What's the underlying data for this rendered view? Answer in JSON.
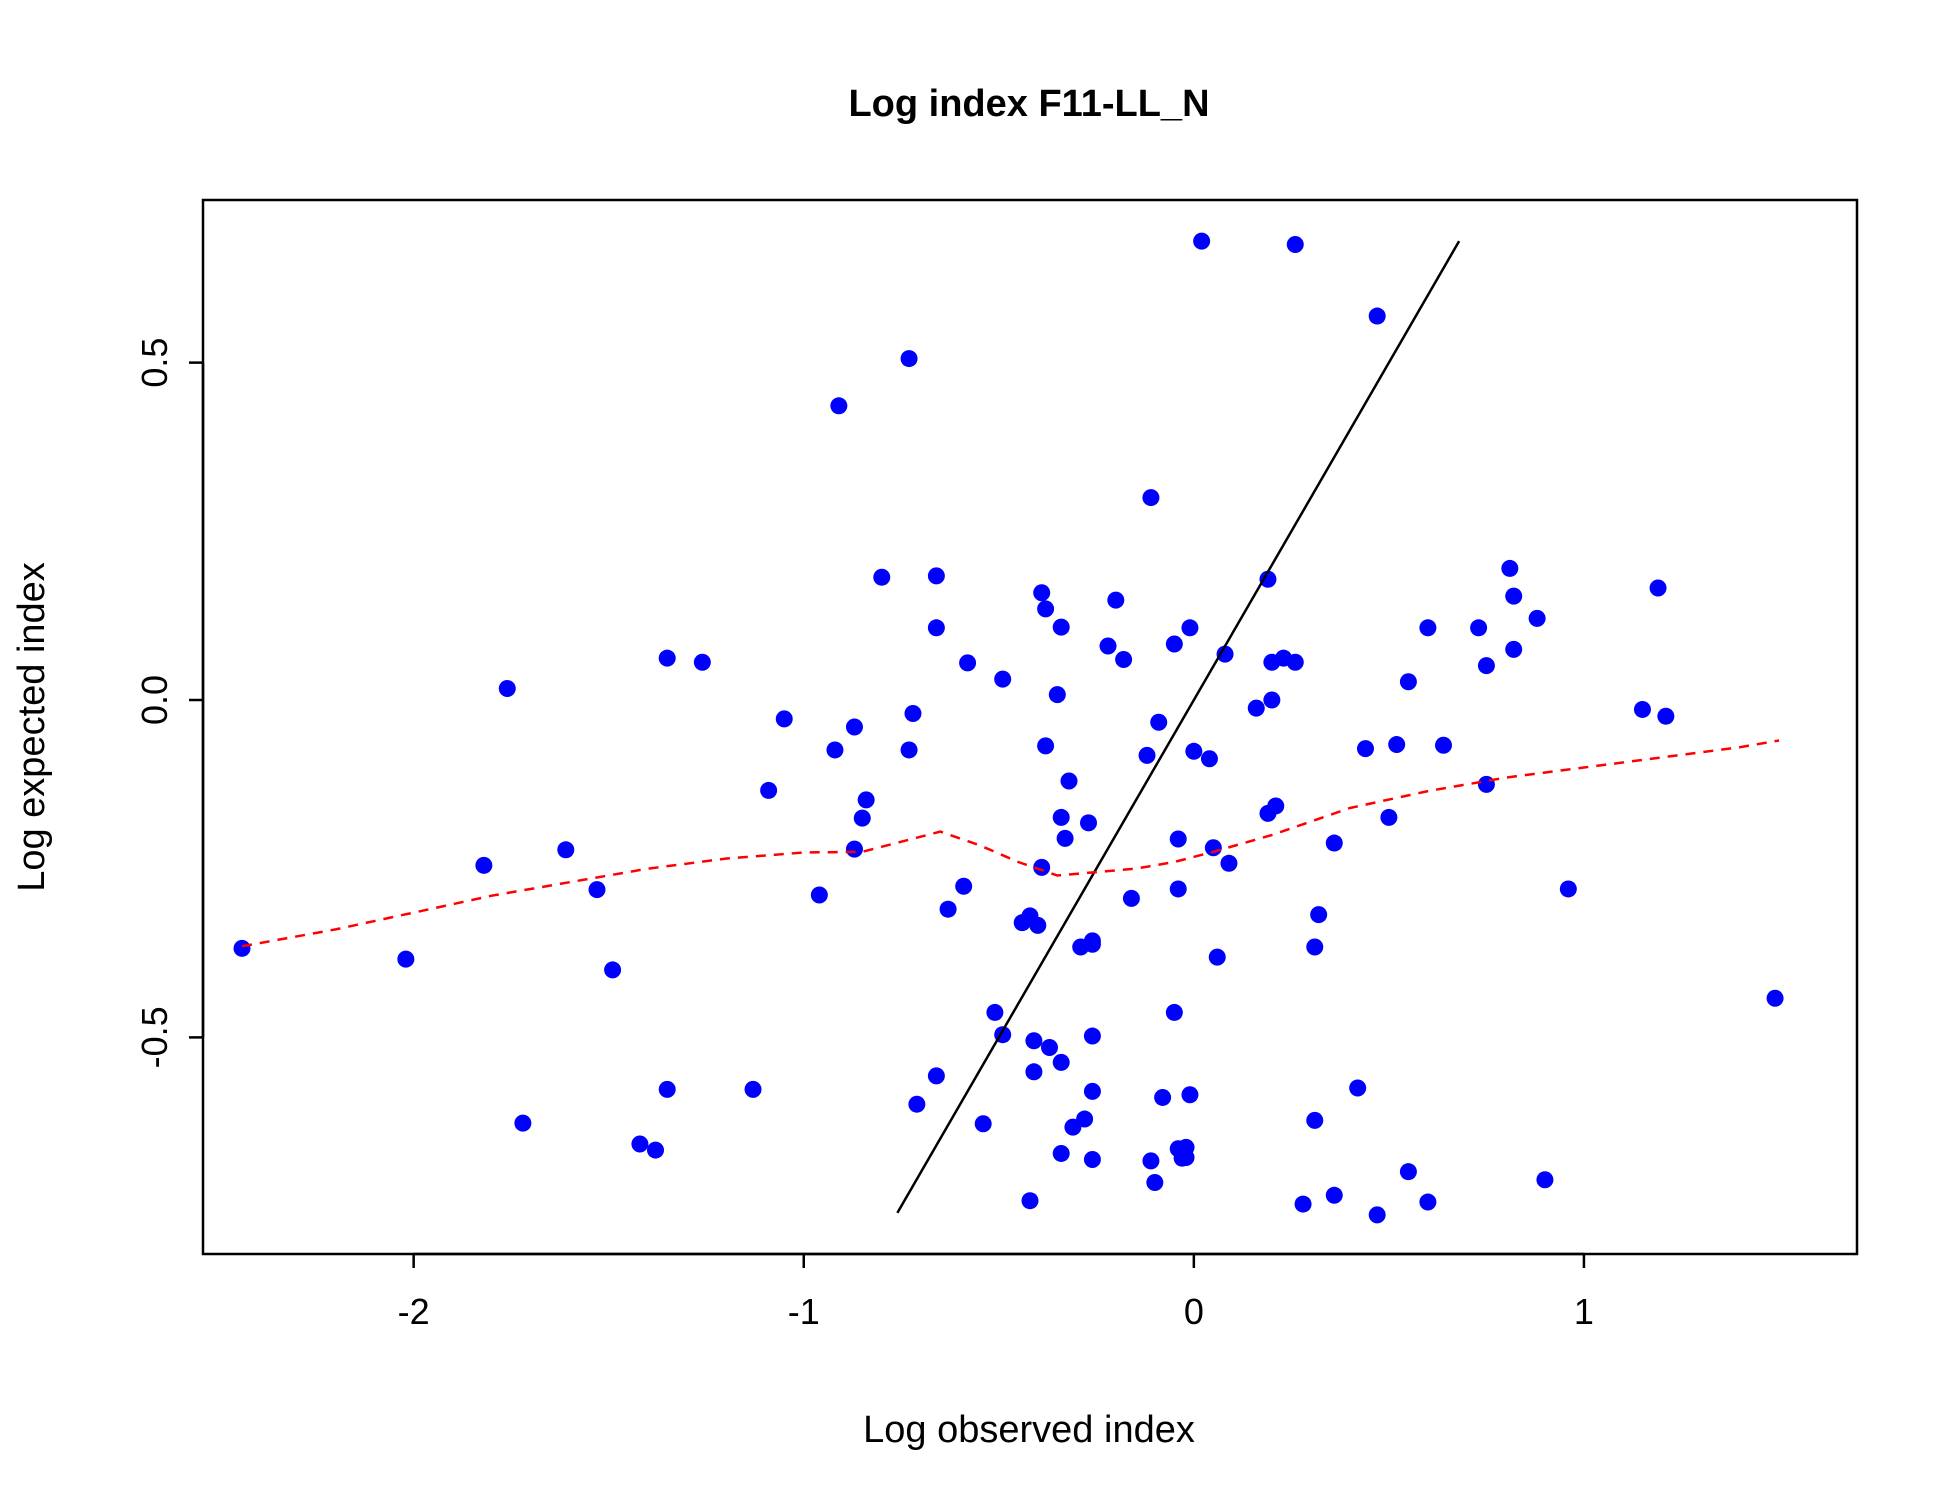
{
  "chart_data": {
    "type": "scatter",
    "title": "Log index F11-LL_N",
    "xlabel": "Log observed index",
    "ylabel": "Log expected index",
    "xlim": [
      -2.54,
      1.7
    ],
    "ylim": [
      -0.821,
      0.741
    ],
    "xticks": [
      {
        "value": -2,
        "label": "-2"
      },
      {
        "value": -1,
        "label": "-1"
      },
      {
        "value": 0,
        "label": "0"
      },
      {
        "value": 1,
        "label": "1"
      }
    ],
    "yticks": [
      {
        "value": -0.5,
        "label": "-0.5"
      },
      {
        "value": 0.0,
        "label": "0.0"
      },
      {
        "value": 0.5,
        "label": "0.5"
      }
    ],
    "points_color": "#0000ff",
    "identity_line": {
      "x": [
        -0.76,
        0.68
      ],
      "y": [
        -0.76,
        0.68
      ],
      "color": "#000000"
    },
    "smoother": {
      "color": "#ff0000",
      "style": "dashed",
      "x": [
        -2.44,
        -2.2,
        -2.0,
        -1.8,
        -1.6,
        -1.4,
        -1.2,
        -1.0,
        -0.85,
        -0.75,
        -0.65,
        -0.55,
        -0.45,
        -0.35,
        -0.25,
        -0.15,
        -0.05,
        0.05,
        0.2,
        0.4,
        0.6,
        0.8,
        1.0,
        1.2,
        1.4,
        1.5
      ],
      "y": [
        -0.365,
        -0.34,
        -0.315,
        -0.29,
        -0.27,
        -0.25,
        -0.235,
        -0.226,
        -0.225,
        -0.21,
        -0.195,
        -0.215,
        -0.24,
        -0.26,
        -0.255,
        -0.25,
        -0.24,
        -0.225,
        -0.2,
        -0.16,
        -0.135,
        -0.115,
        -0.1,
        -0.085,
        -0.07,
        -0.06
      ]
    },
    "points": [
      [
        -2.44,
        -0.368
      ],
      [
        -2.02,
        -0.384
      ],
      [
        -1.82,
        -0.245
      ],
      [
        -1.76,
        0.017
      ],
      [
        -1.72,
        -0.627
      ],
      [
        -1.61,
        -0.222
      ],
      [
        -1.53,
        -0.281
      ],
      [
        -1.49,
        -0.4
      ],
      [
        -1.42,
        -0.658
      ],
      [
        -1.38,
        -0.667
      ],
      [
        -1.35,
        0.062
      ],
      [
        -1.35,
        -0.577
      ],
      [
        -1.26,
        0.056
      ],
      [
        -1.13,
        -0.577
      ],
      [
        -1.09,
        -0.134
      ],
      [
        -1.05,
        -0.028
      ],
      [
        -0.96,
        -0.289
      ],
      [
        -0.92,
        -0.074
      ],
      [
        -0.91,
        0.436
      ],
      [
        -0.87,
        -0.04
      ],
      [
        -0.87,
        -0.221
      ],
      [
        -0.85,
        -0.175
      ],
      [
        -0.84,
        -0.148
      ],
      [
        -0.8,
        0.182
      ],
      [
        -0.73,
        0.506
      ],
      [
        -0.73,
        -0.074
      ],
      [
        -0.72,
        -0.02
      ],
      [
        -0.71,
        -0.599
      ],
      [
        -0.66,
        0.184
      ],
      [
        -0.66,
        0.107
      ],
      [
        -0.66,
        -0.557
      ],
      [
        -0.63,
        -0.31
      ],
      [
        -0.59,
        -0.276
      ],
      [
        -0.58,
        0.055
      ],
      [
        -0.54,
        -0.628
      ],
      [
        -0.51,
        -0.463
      ],
      [
        -0.49,
        0.031
      ],
      [
        -0.49,
        -0.496
      ],
      [
        -0.44,
        -0.33
      ],
      [
        -0.42,
        -0.32
      ],
      [
        -0.42,
        -0.742
      ],
      [
        -0.41,
        -0.505
      ],
      [
        -0.41,
        -0.551
      ],
      [
        -0.4,
        -0.334
      ],
      [
        -0.39,
        0.159
      ],
      [
        -0.39,
        -0.248
      ],
      [
        -0.38,
        0.135
      ],
      [
        -0.38,
        -0.068
      ],
      [
        -0.37,
        -0.515
      ],
      [
        -0.35,
        0.008
      ],
      [
        -0.34,
        0.108
      ],
      [
        -0.34,
        -0.174
      ],
      [
        -0.34,
        -0.537
      ],
      [
        -0.34,
        -0.672
      ],
      [
        -0.33,
        -0.205
      ],
      [
        -0.32,
        -0.12
      ],
      [
        -0.31,
        -0.633
      ],
      [
        -0.29,
        -0.366
      ],
      [
        -0.28,
        -0.621
      ],
      [
        -0.27,
        -0.182
      ],
      [
        -0.26,
        -0.357
      ],
      [
        -0.26,
        -0.362
      ],
      [
        -0.26,
        -0.498
      ],
      [
        -0.26,
        -0.58
      ],
      [
        -0.26,
        -0.681
      ],
      [
        -0.22,
        0.08
      ],
      [
        -0.2,
        0.148
      ],
      [
        -0.18,
        0.06
      ],
      [
        -0.16,
        -0.294
      ],
      [
        -0.12,
        -0.082
      ],
      [
        -0.11,
        0.3
      ],
      [
        -0.11,
        -0.683
      ],
      [
        -0.1,
        -0.715
      ],
      [
        -0.09,
        -0.033
      ],
      [
        -0.08,
        -0.589
      ],
      [
        -0.05,
        0.083
      ],
      [
        -0.05,
        -0.463
      ],
      [
        -0.04,
        -0.206
      ],
      [
        -0.04,
        -0.28
      ],
      [
        -0.04,
        -0.665
      ],
      [
        -0.03,
        -0.679
      ],
      [
        -0.02,
        -0.678
      ],
      [
        -0.02,
        -0.663
      ],
      [
        -0.01,
        -0.585
      ],
      [
        -0.01,
        0.107
      ],
      [
        0.0,
        -0.076
      ],
      [
        0.02,
        0.68
      ],
      [
        0.04,
        -0.087
      ],
      [
        0.05,
        -0.219
      ],
      [
        0.06,
        -0.381
      ],
      [
        0.08,
        0.068
      ],
      [
        0.09,
        -0.242
      ],
      [
        0.16,
        -0.012
      ],
      [
        0.19,
        0.179
      ],
      [
        0.19,
        -0.168
      ],
      [
        0.2,
        0.056
      ],
      [
        0.2,
        0.0
      ],
      [
        0.21,
        -0.157
      ],
      [
        0.23,
        0.062
      ],
      [
        0.26,
        0.675
      ],
      [
        0.26,
        0.056
      ],
      [
        0.28,
        -0.747
      ],
      [
        0.31,
        -0.366
      ],
      [
        0.31,
        -0.623
      ],
      [
        0.32,
        -0.318
      ],
      [
        0.36,
        -0.212
      ],
      [
        0.36,
        -0.734
      ],
      [
        0.42,
        -0.575
      ],
      [
        0.44,
        -0.072
      ],
      [
        0.47,
        0.569
      ],
      [
        0.47,
        -0.763
      ],
      [
        0.5,
        -0.174
      ],
      [
        0.52,
        -0.066
      ],
      [
        0.55,
        0.027
      ],
      [
        0.55,
        -0.699
      ],
      [
        0.6,
        0.107
      ],
      [
        0.6,
        -0.744
      ],
      [
        0.64,
        -0.067
      ],
      [
        0.73,
        0.107
      ],
      [
        0.75,
        0.051
      ],
      [
        0.75,
        -0.125
      ],
      [
        0.81,
        0.195
      ],
      [
        0.82,
        0.154
      ],
      [
        0.82,
        0.075
      ],
      [
        0.88,
        0.121
      ],
      [
        0.9,
        -0.711
      ],
      [
        0.96,
        -0.28
      ],
      [
        1.15,
        -0.014
      ],
      [
        1.19,
        0.166
      ],
      [
        1.21,
        -0.024
      ],
      [
        1.49,
        -0.442
      ]
    ]
  }
}
